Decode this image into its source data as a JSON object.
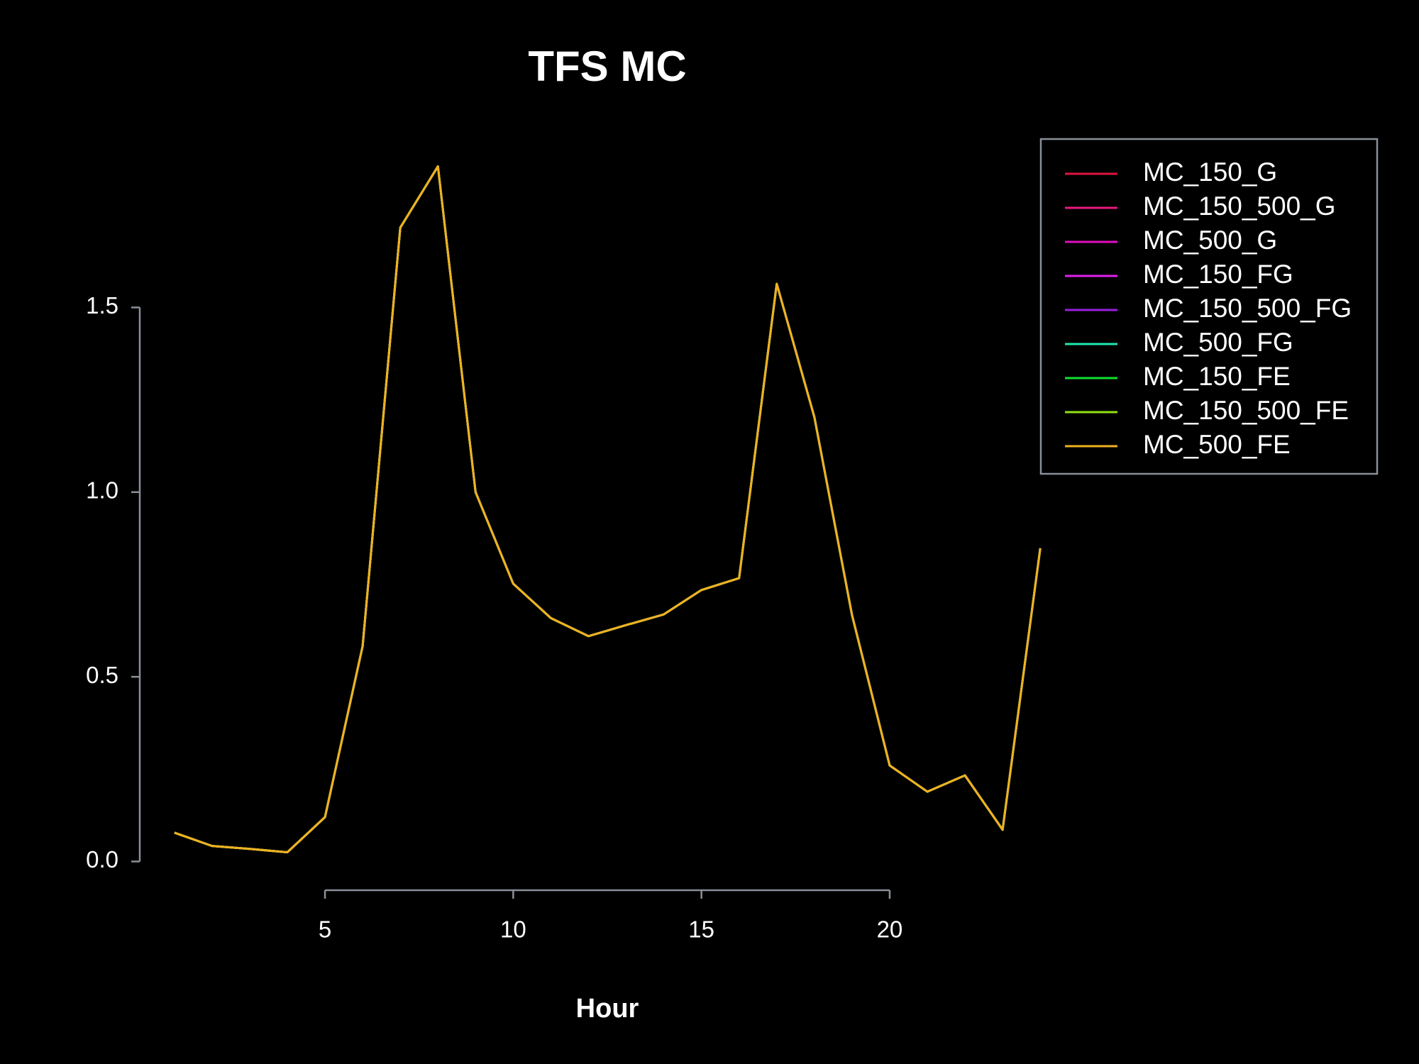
{
  "chart_data": {
    "type": "line",
    "title": "TFS MC",
    "x_label": "Hour",
    "x": [
      1,
      2,
      3,
      4,
      5,
      6,
      7,
      8,
      9,
      10,
      11,
      12,
      13,
      14,
      15,
      16,
      17,
      18,
      19,
      20,
      21,
      22,
      23,
      24
    ],
    "series": [
      {
        "name": "MC_150_G",
        "color": "#dc143c",
        "values": [
          0.078,
          0.042,
          0.034,
          0.025,
          0.12,
          0.583,
          1.716,
          1.882,
          1.0,
          0.752,
          0.659,
          0.61,
          0.64,
          0.669,
          0.735,
          0.767,
          1.564,
          1.203,
          0.667,
          0.26,
          0.189,
          0.233,
          0.086,
          0.848
        ]
      },
      {
        "name": "MC_150_500_G",
        "color": "#e8197d",
        "values": [
          0.078,
          0.042,
          0.034,
          0.025,
          0.12,
          0.583,
          1.716,
          1.882,
          1.0,
          0.752,
          0.659,
          0.61,
          0.64,
          0.669,
          0.735,
          0.767,
          1.564,
          1.203,
          0.667,
          0.26,
          0.189,
          0.233,
          0.086,
          0.848
        ]
      },
      {
        "name": "MC_500_G",
        "color": "#e010c0",
        "values": [
          0.078,
          0.042,
          0.034,
          0.025,
          0.12,
          0.583,
          1.716,
          1.882,
          1.0,
          0.752,
          0.659,
          0.61,
          0.64,
          0.669,
          0.735,
          0.767,
          1.564,
          1.203,
          0.667,
          0.26,
          0.189,
          0.233,
          0.086,
          0.848
        ]
      },
      {
        "name": "MC_150_FG",
        "color": "#e020f0",
        "values": [
          0.078,
          0.042,
          0.034,
          0.025,
          0.12,
          0.583,
          1.716,
          1.882,
          1.0,
          0.752,
          0.659,
          0.61,
          0.64,
          0.669,
          0.735,
          0.767,
          1.564,
          1.203,
          0.667,
          0.26,
          0.189,
          0.233,
          0.086,
          0.848
        ]
      },
      {
        "name": "MC_150_500_FG",
        "color": "#9a20e0",
        "values": [
          0.078,
          0.042,
          0.034,
          0.025,
          0.12,
          0.583,
          1.716,
          1.882,
          1.0,
          0.752,
          0.659,
          0.61,
          0.64,
          0.669,
          0.735,
          0.767,
          1.564,
          1.203,
          0.667,
          0.26,
          0.189,
          0.233,
          0.086,
          0.848
        ]
      },
      {
        "name": "MC_500_FG",
        "color": "#20e8b0",
        "values": [
          0.078,
          0.042,
          0.034,
          0.025,
          0.12,
          0.583,
          1.716,
          1.882,
          1.0,
          0.752,
          0.659,
          0.61,
          0.64,
          0.669,
          0.735,
          0.767,
          1.564,
          1.203,
          0.667,
          0.26,
          0.189,
          0.233,
          0.086,
          0.848
        ]
      },
      {
        "name": "MC_150_FE",
        "color": "#10e030",
        "values": [
          0.078,
          0.042,
          0.034,
          0.025,
          0.12,
          0.583,
          1.716,
          1.882,
          1.0,
          0.752,
          0.659,
          0.61,
          0.64,
          0.669,
          0.735,
          0.767,
          1.564,
          1.203,
          0.667,
          0.26,
          0.189,
          0.233,
          0.086,
          0.848
        ]
      },
      {
        "name": "MC_150_500_FE",
        "color": "#90e010",
        "values": [
          0.078,
          0.042,
          0.034,
          0.025,
          0.12,
          0.583,
          1.716,
          1.882,
          1.0,
          0.752,
          0.659,
          0.61,
          0.64,
          0.669,
          0.735,
          0.767,
          1.564,
          1.203,
          0.667,
          0.26,
          0.189,
          0.233,
          0.086,
          0.848
        ]
      },
      {
        "name": "MC_500_FE",
        "color": "#f0b020",
        "values": [
          0.078,
          0.042,
          0.034,
          0.025,
          0.12,
          0.583,
          1.716,
          1.882,
          1.0,
          0.752,
          0.659,
          0.61,
          0.64,
          0.669,
          0.735,
          0.767,
          1.564,
          1.203,
          0.667,
          0.26,
          0.189,
          0.233,
          0.086,
          0.848
        ]
      }
    ],
    "xlim": [
      0.08,
      24.92
    ],
    "ylim": [
      -0.049,
      1.956
    ],
    "xticks": [
      5,
      10,
      15,
      20
    ],
    "yticks": [
      {
        "value": 0,
        "label": "0.0"
      },
      0.5,
      {
        "value": 1,
        "label": "1.0"
      },
      1.5
    ],
    "grid": false,
    "legend": "top-right"
  }
}
